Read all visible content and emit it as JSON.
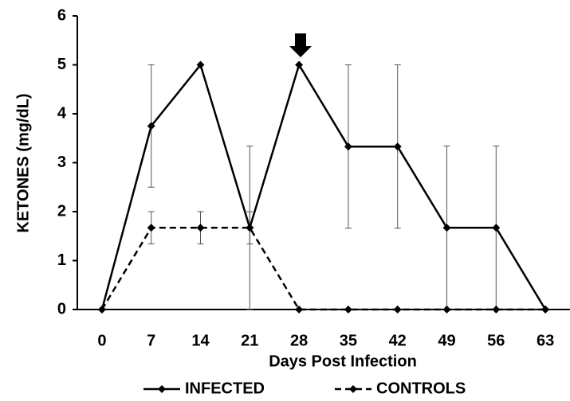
{
  "chart_data": {
    "type": "line",
    "x_label": "Days Post Infection",
    "y_label": "KETONES (mg/dL)",
    "categories": [
      "0",
      "7",
      "14",
      "21",
      "28",
      "35",
      "42",
      "49",
      "56",
      "63"
    ],
    "ylim": [
      0,
      6
    ],
    "yticks": [
      0,
      1,
      2,
      3,
      4,
      5,
      6
    ],
    "series": [
      {
        "name": "INFECTED",
        "color": "#000000",
        "linestyle": "solid",
        "values": [
          0,
          3.75,
          5,
          1.67,
          5,
          3.33,
          3.33,
          1.67,
          1.67,
          0
        ],
        "errors": [
          null,
          1.25,
          null,
          1.67,
          null,
          1.67,
          1.67,
          1.67,
          1.67,
          null
        ]
      },
      {
        "name": "CONTROLS",
        "color": "#000000",
        "linestyle": "dashed",
        "values": [
          0,
          1.67,
          1.67,
          1.67,
          0,
          0,
          0,
          0,
          0,
          0
        ],
        "errors": [
          null,
          0.33,
          0.33,
          0.33,
          null,
          null,
          null,
          null,
          null,
          null
        ]
      }
    ]
  }
}
